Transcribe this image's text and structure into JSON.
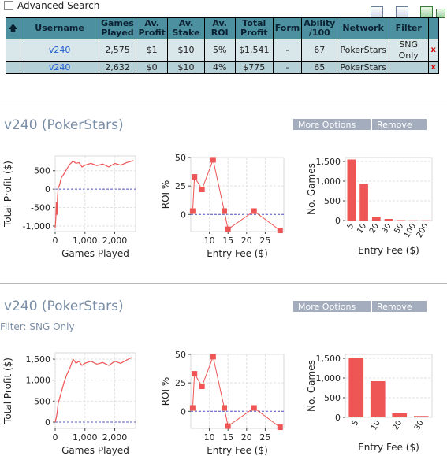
{
  "toolbar": {
    "advanced_search_label": "Advanced Search",
    "icons": [
      "window-icon",
      "sheet-icon",
      "refresh-icon",
      "export-icon"
    ]
  },
  "table": {
    "headers": [
      "Username",
      "Games Played",
      "Av. Profit",
      "Av. Stake",
      "Av. ROI",
      "Total Profit",
      "Form",
      "Ability /100",
      "Network",
      "Filter"
    ],
    "rows": [
      {
        "username": "v240",
        "games": "2,575",
        "av_profit": "$1",
        "av_stake": "$10",
        "av_roi": "5%",
        "total_profit": "$1,541",
        "form": "-",
        "ability": "67",
        "network": "PokerStars",
        "filter": "SNG Only",
        "remove": "x"
      },
      {
        "username": "v240",
        "games": "2,632",
        "av_profit": "$0",
        "av_stake": "$10",
        "av_roi": "4%",
        "total_profit": "$775",
        "form": "-",
        "ability": "65",
        "network": "PokerStars",
        "filter": "",
        "remove": "x"
      }
    ]
  },
  "sections": [
    {
      "title": "v240 (PokerStars)",
      "filter_text": "",
      "more_options": "More Options",
      "remove": "Remove"
    },
    {
      "title": "v240 (PokerStars)",
      "filter_text": "Filter: SNG Only",
      "more_options": "More Options",
      "remove": "Remove"
    }
  ],
  "colors": {
    "accent": "#ee5555",
    "header_bg": "#4d90a0",
    "title": "#7a8ea6"
  },
  "chart_data": [
    {
      "type": "line",
      "xlabel": "Games Played",
      "ylabel": "Total Profit ($)",
      "xlim": [
        0,
        2700
      ],
      "ylim": [
        -1150,
        900
      ],
      "xticks": [
        0,
        1000,
        2000
      ],
      "xtick_labels": [
        "0",
        "1,000",
        "2,000"
      ],
      "yticks": [
        -1000,
        -500,
        0,
        500
      ],
      "ytick_labels": [
        "-1,000",
        "-500",
        "0",
        "500"
      ],
      "x": [
        0,
        20,
        40,
        60,
        80,
        100,
        150,
        200,
        300,
        400,
        500,
        600,
        700,
        800,
        900,
        1000,
        1200,
        1400,
        1600,
        1800,
        2000,
        2200,
        2400,
        2632
      ],
      "y": [
        -1050,
        -800,
        -350,
        -700,
        -200,
        30,
        120,
        300,
        420,
        560,
        680,
        760,
        700,
        720,
        600,
        650,
        700,
        640,
        680,
        600,
        700,
        650,
        720,
        775
      ]
    },
    {
      "type": "line",
      "xlabel": "Entry Fee ($)",
      "ylabel": "ROI %",
      "xlim": [
        5,
        30
      ],
      "ylim": [
        -15,
        50
      ],
      "xticks": [
        10,
        15,
        20,
        25
      ],
      "xtick_labels": [
        "10",
        "15",
        "20",
        "25"
      ],
      "yticks": [
        0,
        25,
        50
      ],
      "ytick_labels": [
        "0",
        "25",
        "50"
      ],
      "x": [
        5.5,
        6,
        8,
        11,
        14,
        15,
        22,
        29
      ],
      "y": [
        3,
        33,
        22,
        48,
        3,
        -13,
        3,
        -14
      ]
    },
    {
      "type": "bar",
      "xlabel": "Entry Fee ($)",
      "ylabel": "No. Games",
      "ylim": [
        0,
        1600
      ],
      "yticks": [
        0,
        500,
        1000,
        1500
      ],
      "ytick_labels": [
        "0",
        "500",
        "1,000",
        "1,500"
      ],
      "categories": [
        "5",
        "10",
        "20",
        "30",
        "50",
        "100",
        "200"
      ],
      "values": [
        1550,
        920,
        100,
        40,
        10,
        5,
        5
      ]
    },
    {
      "type": "line",
      "xlabel": "Games Played",
      "ylabel": "Total Profit ($)",
      "xlim": [
        0,
        2700
      ],
      "ylim": [
        -150,
        1650
      ],
      "xticks": [
        0,
        1000,
        2000
      ],
      "xtick_labels": [
        "0",
        "1,000",
        "2,000"
      ],
      "yticks": [
        0,
        500,
        1000,
        1500
      ],
      "ytick_labels": [
        "0",
        "500",
        "1,000",
        "1,500"
      ],
      "x": [
        0,
        30,
        60,
        100,
        200,
        300,
        400,
        500,
        600,
        700,
        800,
        900,
        1000,
        1200,
        1400,
        1600,
        1800,
        2000,
        2200,
        2400,
        2575
      ],
      "y": [
        0,
        80,
        200,
        450,
        700,
        950,
        1150,
        1300,
        1500,
        1400,
        1450,
        1350,
        1400,
        1450,
        1380,
        1420,
        1350,
        1450,
        1400,
        1480,
        1541
      ]
    },
    {
      "type": "line",
      "xlabel": "Entry Fee ($)",
      "ylabel": "ROI %",
      "xlim": [
        5,
        30
      ],
      "ylim": [
        -15,
        50
      ],
      "xticks": [
        10,
        15,
        20,
        25
      ],
      "xtick_labels": [
        "10",
        "15",
        "20",
        "25"
      ],
      "yticks": [
        0,
        25,
        50
      ],
      "ytick_labels": [
        "0",
        "25",
        "50"
      ],
      "x": [
        5.5,
        6,
        8,
        11,
        14,
        15,
        22,
        29
      ],
      "y": [
        3,
        33,
        22,
        48,
        3,
        -13,
        3,
        -14
      ]
    },
    {
      "type": "bar",
      "xlabel": "Entry Fee ($)",
      "ylabel": "No. Games",
      "ylim": [
        0,
        1600
      ],
      "yticks": [
        0,
        500,
        1000,
        1500
      ],
      "ytick_labels": [
        "0",
        "500",
        "1,000",
        "1,500"
      ],
      "categories": [
        "5",
        "10",
        "20",
        "30"
      ],
      "values": [
        1520,
        920,
        100,
        35
      ]
    }
  ]
}
